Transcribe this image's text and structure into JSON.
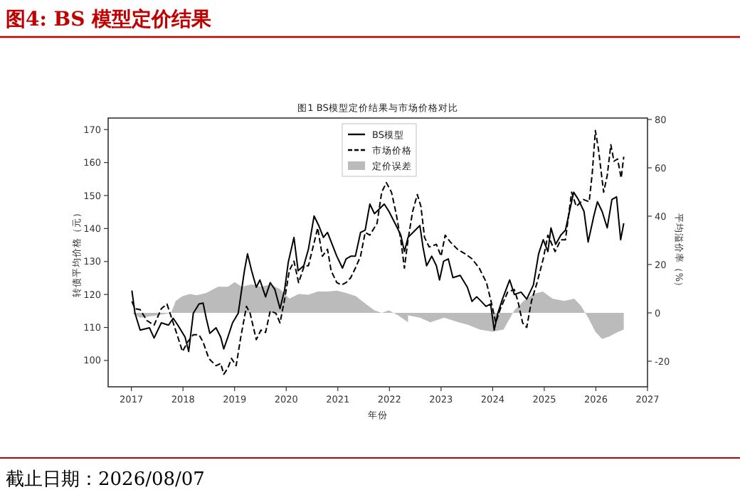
{
  "chart_data": {
    "type": "line",
    "title": "图4:   BS 模型定价结果",
    "subtitle": "图1 BS模型定价结果与市场价格对比",
    "xlabel": "年份",
    "ylabel": "转债平均价格（元）",
    "y2label": "平均溢价率（%）",
    "annotations": [
      "截止日期：2026/08/07"
    ],
    "xlim": [
      2016.55,
      2027
    ],
    "xticks": [
      2017,
      2018,
      2019,
      2020,
      2021,
      2022,
      2023,
      2024,
      2025,
      2026,
      2027
    ],
    "ylim": [
      92,
      173.5
    ],
    "yticks": [
      100,
      110,
      120,
      130,
      140,
      150,
      160,
      170
    ],
    "y2lim": [
      -30.6,
      80.6
    ],
    "y2ticks": [
      -20,
      0,
      20,
      40,
      60,
      80
    ],
    "legend": "top",
    "series": [
      {
        "name": "BS模型",
        "color": "#000000",
        "line_style": "solid",
        "x": [
          2017.01,
          2017.07,
          2017.17,
          2017.35,
          2017.44,
          2017.58,
          2017.72,
          2017.81,
          2017.9,
          2018.04,
          2018.11,
          2018.2,
          2018.31,
          2018.39,
          2018.45,
          2018.52,
          2018.64,
          2018.73,
          2018.79,
          2018.87,
          2018.96,
          2019.07,
          2019.19,
          2019.25,
          2019.33,
          2019.42,
          2019.49,
          2019.6,
          2019.69,
          2019.78,
          2019.88,
          2019.97,
          2020.04,
          2020.15,
          2020.23,
          2020.34,
          2020.43,
          2020.54,
          2020.63,
          2020.72,
          2020.8,
          2020.89,
          2020.98,
          2021.09,
          2021.16,
          2021.25,
          2021.34,
          2021.44,
          2021.53,
          2021.62,
          2021.71,
          2021.81,
          2021.9,
          2021.99,
          2022.13,
          2022.22,
          2022.29,
          2022.36,
          2022.5,
          2022.59,
          2022.65,
          2022.72,
          2022.82,
          2022.91,
          2022.97,
          2023.05,
          2023.14,
          2023.23,
          2023.37,
          2023.51,
          2023.6,
          2023.69,
          2023.78,
          2023.87,
          2023.96,
          2024.03,
          2024.1,
          2024.19,
          2024.33,
          2024.42,
          2024.55,
          2024.66,
          2024.79,
          2024.89,
          2024.98,
          2025.07,
          2025.13,
          2025.22,
          2025.32,
          2025.41,
          2025.5,
          2025.57,
          2025.66,
          2025.77,
          2025.85,
          2025.96,
          2026.03,
          2026.12,
          2026.22,
          2026.31,
          2026.4,
          2026.48,
          2026.54
        ],
        "values": [
          121.2,
          114.3,
          109.2,
          109.9,
          106.8,
          111.4,
          110.7,
          112.8,
          110.7,
          107.1,
          102.7,
          114.3,
          117.1,
          117.4,
          112.8,
          108.2,
          109.9,
          107.1,
          103.5,
          107.1,
          111.4,
          114.3,
          127.2,
          132.3,
          127.2,
          122.2,
          124.4,
          119.3,
          123.6,
          121.5,
          115.7,
          121.5,
          129.8,
          137.3,
          127.2,
          128.7,
          133.7,
          143.8,
          140.9,
          137.3,
          138.8,
          135.2,
          131.6,
          128.0,
          130.8,
          131.6,
          131.6,
          138.8,
          139.5,
          147.4,
          144.5,
          146.0,
          147.4,
          145.2,
          140.9,
          138.0,
          133.0,
          137.3,
          139.5,
          140.9,
          134.4,
          128.7,
          131.6,
          128.7,
          124.4,
          130.1,
          130.8,
          125.1,
          125.8,
          122.2,
          117.9,
          119.3,
          117.9,
          116.4,
          117.1,
          109.2,
          114.3,
          118.6,
          124.4,
          120.0,
          120.7,
          118.6,
          122.9,
          132.3,
          136.6,
          133.0,
          140.2,
          135.2,
          138.0,
          139.5,
          146.0,
          151.0,
          148.8,
          145.2,
          135.9,
          143.8,
          148.1,
          145.2,
          140.2,
          148.8,
          149.6,
          136.6,
          141.6
        ]
      },
      {
        "name": "市场价格",
        "color": "#000000",
        "line_style": "dashed",
        "x": [
          2017.01,
          2017.07,
          2017.17,
          2017.3,
          2017.44,
          2017.58,
          2017.69,
          2017.81,
          2017.9,
          2017.99,
          2018.09,
          2018.2,
          2018.31,
          2018.39,
          2018.5,
          2018.64,
          2018.73,
          2018.79,
          2018.87,
          2018.94,
          2019.03,
          2019.12,
          2019.23,
          2019.3,
          2019.42,
          2019.51,
          2019.6,
          2019.69,
          2019.8,
          2019.88,
          2019.97,
          2020.06,
          2020.15,
          2020.24,
          2020.35,
          2020.43,
          2020.52,
          2020.61,
          2020.7,
          2020.8,
          2020.87,
          2020.98,
          2021.07,
          2021.16,
          2021.25,
          2021.34,
          2021.44,
          2021.53,
          2021.62,
          2021.76,
          2021.85,
          2021.94,
          2022.04,
          2022.13,
          2022.22,
          2022.29,
          2022.36,
          2022.45,
          2022.54,
          2022.61,
          2022.68,
          2022.77,
          2022.91,
          2023.0,
          2023.08,
          2023.18,
          2023.32,
          2023.47,
          2023.6,
          2023.74,
          2023.88,
          2023.97,
          2024.06,
          2024.15,
          2024.29,
          2024.42,
          2024.49,
          2024.58,
          2024.66,
          2024.75,
          2024.86,
          2024.98,
          2025.07,
          2025.21,
          2025.32,
          2025.41,
          2025.53,
          2025.62,
          2025.76,
          2025.87,
          2025.93,
          2025.99,
          2026.05,
          2026.15,
          2026.22,
          2026.29,
          2026.35,
          2026.42,
          2026.49,
          2026.54
        ],
        "values": [
          117.9,
          115.7,
          115.4,
          112.1,
          110.7,
          115.7,
          117.1,
          111.4,
          107.1,
          102.7,
          105.6,
          107.8,
          107.8,
          105.6,
          100.6,
          98.4,
          99.1,
          95.8,
          97.7,
          100.6,
          98.4,
          107.1,
          116.4,
          114.3,
          106.3,
          109.2,
          108.5,
          115.0,
          114.3,
          111.4,
          118.6,
          127.2,
          130.1,
          123.6,
          128.7,
          128.7,
          134.4,
          140.2,
          131.6,
          133.7,
          127.2,
          123.6,
          122.9,
          123.6,
          125.1,
          128.0,
          131.6,
          138.8,
          138.0,
          141.6,
          151.0,
          153.9,
          151.0,
          144.5,
          136.6,
          128.0,
          136.6,
          145.2,
          150.3,
          146.7,
          137.3,
          134.4,
          135.2,
          131.6,
          138.0,
          135.9,
          133.7,
          132.3,
          130.8,
          128.0,
          123.6,
          117.9,
          111.4,
          115.7,
          120.7,
          121.5,
          117.9,
          111.4,
          110.0,
          117.9,
          123.6,
          130.8,
          138.0,
          133.0,
          136.6,
          136.6,
          151.0,
          146.7,
          148.8,
          148.1,
          156.8,
          169.7,
          164.0,
          151.0,
          156.1,
          165.4,
          160.4,
          161.1,
          155.3,
          161.8
        ]
      },
      {
        "name": "定价误差",
        "type": "area",
        "axis": "y2",
        "color": "#bbbbbb",
        "x": [
          2017.01,
          2017.17,
          2017.5,
          2017.77,
          2017.86,
          2017.99,
          2018.13,
          2018.27,
          2018.45,
          2018.68,
          2018.87,
          2019.0,
          2019.14,
          2019.33,
          2019.51,
          2019.7,
          2019.88,
          2020.06,
          2020.24,
          2020.43,
          2020.61,
          2020.8,
          2020.98,
          2021.16,
          2021.35,
          2021.53,
          2021.71,
          2021.85,
          2021.99,
          2022.17,
          2022.36,
          2022.36,
          2022.59,
          2022.79,
          2023.06,
          2023.34,
          2023.52,
          2023.75,
          2024.0,
          2024.21,
          2024.42,
          2024.6,
          2024.79,
          2024.97,
          2025.16,
          2025.39,
          2025.58,
          2025.71,
          2025.85,
          2025.99,
          2026.12,
          2026.26,
          2026.4,
          2026.54
        ],
        "values": [
          0,
          -2,
          -1,
          0,
          4.9,
          6.9,
          7.8,
          7.3,
          8.2,
          10.8,
          10.8,
          12.7,
          10.8,
          11.8,
          10.8,
          11.8,
          9.8,
          5.9,
          7.8,
          7.5,
          8.8,
          8.8,
          9.2,
          8.2,
          6.9,
          3.9,
          1.0,
          0,
          1,
          -1,
          -3.9,
          -1,
          -2,
          -3.9,
          -2,
          -3.9,
          -4.9,
          -6.9,
          -7.8,
          -6.9,
          1,
          4.9,
          7.8,
          8.8,
          5.9,
          4.9,
          5.9,
          2.9,
          -2,
          -7.8,
          -10.8,
          -9.8,
          -8.2,
          -6.9
        ]
      }
    ]
  }
}
